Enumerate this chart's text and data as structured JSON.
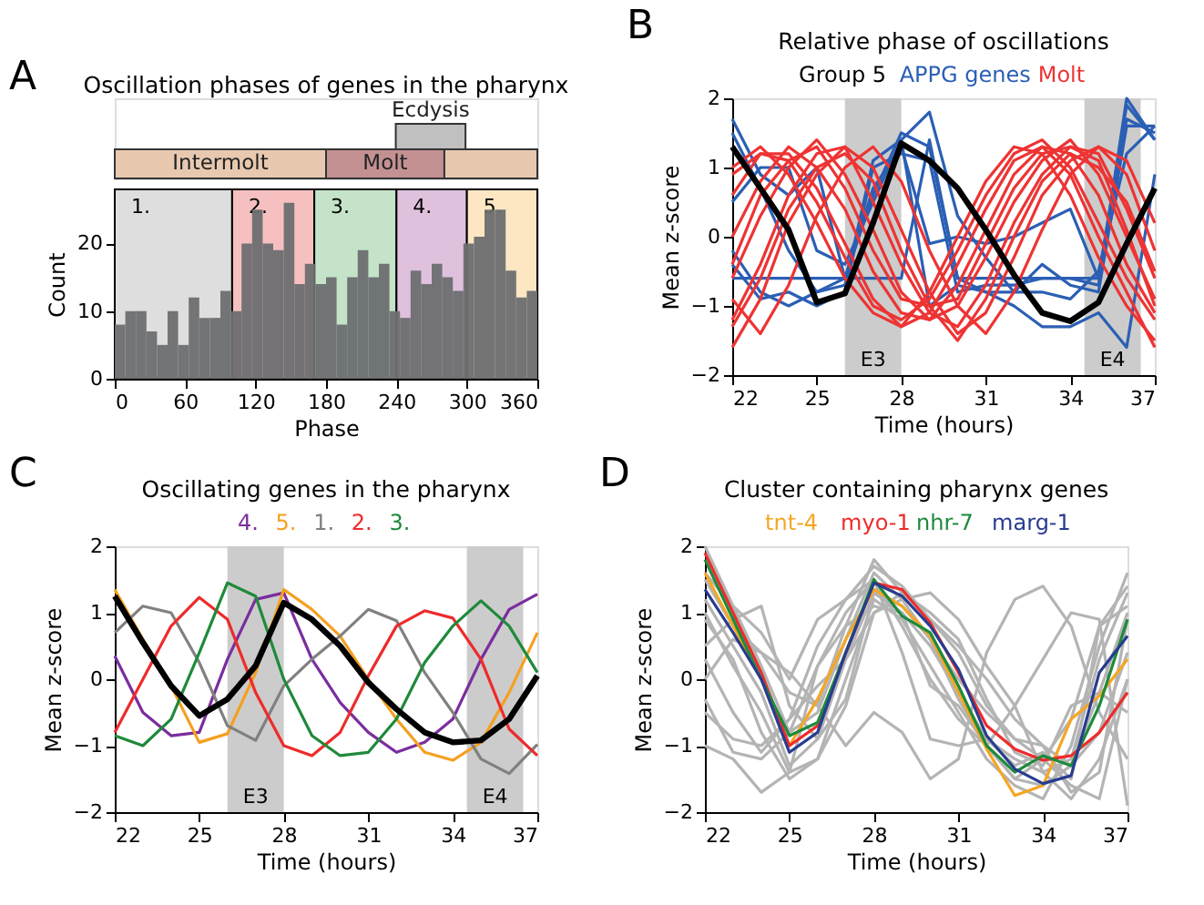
{
  "chart_data": [
    {
      "type": "other",
      "title": "Oscillation phases of genes in the pharynx",
      "annotations": [
        "A",
        "Ecdysis",
        "Intermolt",
        "Molt"
      ],
      "colors": [
        "#c0c0c0",
        "#e8c9b0",
        "#c49193"
      ]
    },
    {
      "type": "histogram",
      "xlabel": "Phase",
      "ylabel": "Count",
      "color": "#6d6e70",
      "bins": [
        0,
        9,
        18,
        27,
        36,
        45,
        54,
        63,
        72,
        81,
        90,
        99,
        108,
        117,
        126,
        135,
        144,
        153,
        162,
        171,
        180,
        189,
        198,
        207,
        216,
        225,
        234,
        243,
        252,
        261,
        270,
        279,
        288,
        297,
        306,
        315,
        324,
        333,
        342,
        351,
        360
      ],
      "values": [
        8,
        10,
        10,
        7,
        5,
        10,
        5,
        12,
        9,
        9,
        13,
        10,
        20,
        25,
        20,
        19,
        26,
        14,
        17,
        14,
        15,
        8,
        15,
        19,
        15,
        17,
        10,
        9,
        16,
        14,
        17,
        15,
        13,
        20,
        21,
        25,
        25,
        16,
        12,
        13
      ],
      "xlim": [
        0,
        360
      ],
      "xticks": [
        0,
        60,
        120,
        180,
        240,
        300,
        360
      ],
      "ylim": [
        0,
        28
      ],
      "yticks": [
        0,
        10,
        20
      ],
      "bands": [
        {
          "axis": "x",
          "from": 0,
          "to": 100,
          "label": "1.",
          "color": "#dedede"
        },
        {
          "axis": "x",
          "from": 100,
          "to": 170,
          "label": "2.",
          "color": "#f6c0c0"
        },
        {
          "axis": "x",
          "from": 170,
          "to": 240,
          "label": "3.",
          "color": "#c4e3c8"
        },
        {
          "axis": "x",
          "from": 240,
          "to": 300,
          "label": "4.",
          "color": "#dfc1de"
        },
        {
          "axis": "x",
          "from": 300,
          "to": 360,
          "label": "5.",
          "color": "#fde6c2"
        }
      ]
    },
    {
      "type": "line",
      "title": "Relative phase of oscillations",
      "xlabel": "Time (hours)",
      "ylabel": "Mean z-score",
      "annotations": [
        "B"
      ],
      "legend": "top",
      "x": [
        22,
        23,
        24,
        25,
        26,
        27,
        28,
        29,
        30,
        31,
        32,
        33,
        34,
        35,
        36,
        37
      ],
      "xlim": [
        22,
        37
      ],
      "xticks": [
        22,
        25,
        28,
        31,
        34,
        37
      ],
      "ylim": [
        -2,
        2
      ],
      "yticks": [
        -2,
        -1,
        0,
        1,
        2
      ],
      "bands": [
        {
          "axis": "x",
          "from": 26,
          "to": 28,
          "label": "E3",
          "color": "#cccccc"
        },
        {
          "axis": "x",
          "from": 34.5,
          "to": 36.5,
          "label": "E4",
          "color": "#cccccc"
        }
      ],
      "series": [
        {
          "name": "Group 5",
          "color": "#000000",
          "values": [
            1.3,
            0.7,
            0.1,
            -0.95,
            -0.82,
            0.2,
            1.35,
            1.1,
            0.7,
            0.1,
            -0.55,
            -1.1,
            -1.22,
            -0.95,
            -0.1,
            0.7
          ]
        },
        {
          "name": "APPG genes",
          "color": "#2b5fb4",
          "values": [
            1.7,
            0.9,
            0.6,
            1.0,
            -0.6,
            0.6,
            1.5,
            1.3,
            -0.6,
            -0.6,
            -0.6,
            -0.6,
            -0.6,
            -0.6,
            1.9,
            1.4
          ]
        },
        {
          "color": "#2b5fb4",
          "values": [
            1.5,
            0.7,
            -0.2,
            -0.8,
            -0.7,
            1.1,
            1.4,
            1.8,
            0.3,
            -0.3,
            -0.8,
            -0.8,
            -0.9,
            -0.5,
            1.2,
            1.6
          ]
        },
        {
          "color": "#2b5fb4",
          "values": [
            -0.2,
            -0.8,
            -1.0,
            -0.8,
            -0.6,
            0.7,
            1.3,
            -0.1,
            0.0,
            -0.1,
            0.0,
            0.2,
            0.4,
            -0.6,
            1.7,
            1.5
          ]
        },
        {
          "color": "#2b5fb4",
          "values": [
            -0.6,
            -0.6,
            -0.6,
            -0.6,
            -0.6,
            -0.6,
            -0.6,
            1.4,
            -0.6,
            -0.8,
            -1.0,
            -1.3,
            -1.3,
            -1.1,
            -1.6,
            0.9
          ]
        },
        {
          "color": "#2b5fb4",
          "values": [
            -0.4,
            -0.9,
            -0.8,
            -1.0,
            -0.8,
            1.0,
            1.2,
            1.1,
            -0.8,
            -0.7,
            -0.7,
            -0.6,
            -0.6,
            -0.7,
            2.0,
            1.4
          ]
        },
        {
          "color": "#2b5fb4",
          "values": [
            0.5,
            1.0,
            1.0,
            -0.2,
            -0.4,
            0.5,
            1.4,
            -1.0,
            -0.7,
            -0.8,
            -0.8,
            -0.4,
            -0.7,
            -0.8,
            1.6,
            1.6
          ]
        },
        {
          "name": "Molt",
          "color": "#ee3333",
          "values": [
            0.6,
            1.2,
            1.1,
            0.5,
            -0.3,
            -1.0,
            -1.2,
            -0.9,
            -0.2,
            0.6,
            1.2,
            1.4,
            1.0,
            0.2,
            -0.6,
            -1.2
          ]
        },
        {
          "color": "#ee3333",
          "values": [
            0.0,
            0.8,
            1.3,
            1.0,
            0.4,
            -0.5,
            -1.1,
            -1.2,
            -0.7,
            0.1,
            0.9,
            1.3,
            1.2,
            0.6,
            -0.4,
            -1.1
          ]
        },
        {
          "color": "#ee3333",
          "values": [
            -0.6,
            0.3,
            1.0,
            1.4,
            0.9,
            0.1,
            -0.8,
            -1.2,
            -1.0,
            -0.3,
            0.5,
            1.1,
            1.4,
            0.9,
            0.0,
            -0.9
          ]
        },
        {
          "color": "#ee3333",
          "values": [
            -1.2,
            -0.4,
            0.6,
            1.2,
            1.3,
            0.5,
            -0.4,
            -1.1,
            -1.3,
            -0.7,
            0.2,
            0.9,
            1.3,
            1.2,
            0.4,
            -0.6
          ]
        },
        {
          "color": "#ee3333",
          "values": [
            -1.6,
            -0.9,
            0.2,
            0.9,
            1.3,
            1.0,
            0.1,
            -0.8,
            -1.4,
            -1.1,
            -0.3,
            0.6,
            1.1,
            1.3,
            0.9,
            -0.2
          ]
        },
        {
          "color": "#ee3333",
          "values": [
            1.0,
            1.3,
            0.9,
            0.2,
            -0.6,
            -1.1,
            -1.3,
            -0.8,
            0.0,
            0.8,
            1.3,
            1.2,
            0.6,
            -0.3,
            -1.0,
            -1.5
          ]
        },
        {
          "color": "#ee3333",
          "values": [
            -0.9,
            -1.4,
            -0.7,
            0.3,
            1.0,
            1.3,
            0.8,
            -0.2,
            -1.0,
            -1.4,
            -0.8,
            0.1,
            0.9,
            1.3,
            1.1,
            0.2
          ]
        },
        {
          "color": "#ee3333",
          "values": [
            0.9,
            1.2,
            1.2,
            0.7,
            -0.1,
            -0.9,
            -1.3,
            -1.1,
            -0.4,
            0.4,
            1.1,
            1.3,
            0.9,
            0.0,
            -0.8,
            -1.6
          ]
        },
        {
          "color": "#ee3333",
          "values": [
            -0.4,
            0.6,
            1.1,
            1.3,
            0.7,
            -0.2,
            -0.9,
            -1.0,
            -0.9,
            -0.1,
            0.7,
            1.2,
            1.3,
            1.1,
            0.1,
            -1.0
          ]
        },
        {
          "color": "#ee3333",
          "values": [
            -1.3,
            -0.6,
            0.4,
            1.0,
            1.2,
            0.8,
            -0.2,
            -1.0,
            -1.5,
            -0.9,
            0.0,
            0.8,
            1.2,
            1.0,
            0.5,
            -0.5
          ]
        }
      ]
    },
    {
      "type": "line",
      "title": "Oscillating genes in the pharynx",
      "xlabel": "Time (hours)",
      "ylabel": "Mean z-score",
      "annotations": [
        "C"
      ],
      "legend": "top",
      "x": [
        22,
        23,
        24,
        25,
        26,
        27,
        28,
        29,
        30,
        31,
        32,
        33,
        34,
        35,
        36,
        37
      ],
      "xlim": [
        22,
        37
      ],
      "xticks": [
        22,
        25,
        28,
        31,
        34,
        37
      ],
      "ylim": [
        -2,
        2
      ],
      "yticks": [
        -2,
        -1,
        0,
        1,
        2
      ],
      "bands": [
        {
          "axis": "x",
          "from": 26,
          "to": 28,
          "label": "E3",
          "color": "#cccccc"
        },
        {
          "axis": "x",
          "from": 34.5,
          "to": 36.5,
          "label": "E4",
          "color": "#cccccc"
        }
      ],
      "series": [
        {
          "name": "4.",
          "color": "#7b2d9e",
          "values": [
            0.35,
            -0.5,
            -0.85,
            -0.8,
            0.3,
            1.2,
            1.3,
            0.3,
            -0.35,
            -0.8,
            -1.1,
            -0.95,
            -0.6,
            0.3,
            1.05,
            1.28
          ]
        },
        {
          "name": "5.",
          "color": "#f5a020",
          "values": [
            1.35,
            0.6,
            -0.1,
            -0.95,
            -0.82,
            0.1,
            1.35,
            1.05,
            0.65,
            0.0,
            -0.6,
            -1.1,
            -1.22,
            -0.95,
            -0.2,
            0.7
          ]
        },
        {
          "name": "1.",
          "color": "#808080",
          "values": [
            0.7,
            1.1,
            1.0,
            0.25,
            -0.7,
            -0.92,
            -0.1,
            0.3,
            0.65,
            1.05,
            0.88,
            0.1,
            -0.5,
            -1.2,
            -1.42,
            -0.98
          ]
        },
        {
          "name": "2.",
          "color": "#ee2b2b",
          "values": [
            -0.8,
            0.0,
            0.8,
            1.23,
            0.9,
            -0.2,
            -1.0,
            -1.15,
            -0.8,
            0.05,
            0.8,
            1.03,
            0.92,
            0.3,
            -0.75,
            -1.15
          ]
        },
        {
          "name": "3.",
          "color": "#1f8a3a",
          "values": [
            -0.85,
            -1.0,
            -0.6,
            0.4,
            1.45,
            1.25,
            0.0,
            -0.85,
            -1.15,
            -1.1,
            -0.6,
            0.25,
            0.8,
            1.18,
            0.8,
            0.1
          ]
        },
        {
          "color": "#000000",
          "values": [
            1.25,
            0.55,
            -0.1,
            -0.55,
            -0.3,
            0.2,
            1.15,
            0.9,
            0.5,
            -0.05,
            -0.45,
            -0.8,
            -0.95,
            -0.92,
            -0.6,
            0.05
          ]
        }
      ]
    },
    {
      "type": "line",
      "title": "Cluster containing pharynx genes",
      "xlabel": "Time (hours)",
      "ylabel": "Mean z-score",
      "annotations": [
        "D"
      ],
      "legend": "top",
      "x": [
        22,
        23,
        24,
        25,
        26,
        27,
        28,
        29,
        30,
        31,
        32,
        33,
        34,
        35,
        36,
        37
      ],
      "xlim": [
        22,
        37
      ],
      "xticks": [
        22,
        25,
        28,
        31,
        34,
        37
      ],
      "ylim": [
        -2,
        2
      ],
      "yticks": [
        -2,
        -1,
        0,
        1,
        2
      ],
      "series": [
        {
          "color": "#b4b4b4",
          "values": [
            2.0,
            1.1,
            0.2,
            -0.8,
            -0.5,
            0.6,
            1.6,
            1.2,
            0.6,
            -0.3,
            -1.0,
            -1.5,
            -1.6,
            -1.3,
            -0.2,
            1.0
          ]
        },
        {
          "color": "#b4b4b4",
          "values": [
            1.2,
            0.5,
            -0.2,
            -1.3,
            -0.9,
            0.3,
            1.3,
            1.0,
            0.5,
            -0.2,
            -0.9,
            -1.2,
            -1.4,
            -1.2,
            0.3,
            1.3
          ]
        },
        {
          "color": "#b4b4b4",
          "values": [
            0.9,
            0.3,
            -0.8,
            -1.5,
            -1.2,
            0.0,
            1.2,
            0.9,
            0.2,
            -0.5,
            -1.2,
            -1.6,
            -1.8,
            -1.0,
            0.5,
            1.6
          ]
        },
        {
          "color": "#b4b4b4",
          "values": [
            -0.3,
            -1.1,
            -1.2,
            -0.8,
            0.2,
            1.0,
            1.5,
            0.8,
            0.0,
            -0.6,
            -1.0,
            -0.4,
            0.3,
            1.0,
            0.9,
            -1.9
          ]
        },
        {
          "color": "#b4b4b4",
          "values": [
            0.0,
            0.6,
            0.4,
            0.1,
            -0.4,
            -1.0,
            -0.5,
            -0.8,
            -1.5,
            -1.2,
            0.4,
            1.2,
            1.4,
            0.8,
            -0.5,
            -1.2
          ]
        },
        {
          "color": "#b4b4b4",
          "values": [
            1.5,
            0.8,
            0.4,
            -0.2,
            -0.4,
            0.8,
            1.8,
            1.3,
            0.9,
            0.4,
            -0.4,
            -0.9,
            -1.2,
            -1.6,
            -1.8,
            0.0
          ]
        },
        {
          "color": "#b4b4b4",
          "values": [
            -1.0,
            -1.2,
            -1.7,
            -1.4,
            0.2,
            0.8,
            1.1,
            1.0,
            -0.1,
            -0.4,
            -1.0,
            -1.5,
            -1.2,
            -0.6,
            0.8,
            1.4
          ]
        },
        {
          "color": "#b4b4b4",
          "values": [
            0.5,
            0.9,
            1.1,
            -0.4,
            -0.9,
            -0.3,
            1.3,
            1.1,
            0.6,
            0.0,
            -0.5,
            -0.9,
            -1.0,
            -1.7,
            -1.4,
            0.9
          ]
        },
        {
          "color": "#b4b4b4",
          "values": [
            1.0,
            0.2,
            -0.5,
            -1.4,
            -1.2,
            -0.4,
            1.0,
            1.2,
            1.3,
            0.9,
            0.2,
            -0.4,
            -1.4,
            -1.8,
            -1.2,
            0.0
          ]
        },
        {
          "color": "#b4b4b4",
          "values": [
            -0.5,
            -0.9,
            -1.0,
            -0.6,
            0.5,
            1.2,
            1.5,
            0.4,
            -0.9,
            -1.0,
            -0.9,
            -1.3,
            -1.1,
            -1.5,
            0.8,
            1.1
          ]
        },
        {
          "color": "#b4b4b4",
          "values": [
            1.6,
            1.1,
            0.7,
            0.0,
            0.9,
            1.2,
            1.7,
            1.4,
            0.9,
            0.5,
            0.0,
            -0.6,
            -1.0,
            -1.3,
            -0.8,
            0.4
          ]
        },
        {
          "color": "#b4b4b4",
          "values": [
            0.3,
            -0.5,
            -1.1,
            -0.6,
            -0.1,
            0.3,
            1.0,
            1.3,
            1.0,
            0.6,
            -0.3,
            -1.1,
            -1.3,
            -0.4,
            -0.2,
            -0.5
          ]
        },
        {
          "name": "tnt-4",
          "color": "#f5a623",
          "values": [
            1.6,
            0.8,
            0.0,
            -1.0,
            -0.3,
            0.6,
            1.35,
            1.1,
            0.65,
            -0.2,
            -1.05,
            -1.75,
            -1.6,
            -0.6,
            -0.25,
            0.3
          ]
        },
        {
          "name": "myo-1",
          "color": "#ee2b2b",
          "values": [
            1.9,
            1.0,
            0.1,
            -1.0,
            -0.7,
            0.4,
            1.45,
            1.35,
            0.85,
            0.1,
            -0.7,
            -1.05,
            -1.22,
            -1.15,
            -0.8,
            -0.2
          ]
        },
        {
          "name": "nhr-7",
          "color": "#1e8a3c",
          "values": [
            1.8,
            0.9,
            0.0,
            -0.85,
            -0.65,
            0.4,
            1.5,
            0.95,
            0.7,
            -0.1,
            -1.0,
            -1.4,
            -1.15,
            -1.3,
            -0.4,
            0.9
          ]
        },
        {
          "name": "marg-1",
          "color": "#283c8f",
          "values": [
            1.35,
            0.7,
            0.0,
            -1.1,
            -0.8,
            0.4,
            1.45,
            1.25,
            0.8,
            0.15,
            -0.85,
            -1.35,
            -1.57,
            -1.45,
            0.1,
            0.65
          ]
        }
      ]
    }
  ]
}
